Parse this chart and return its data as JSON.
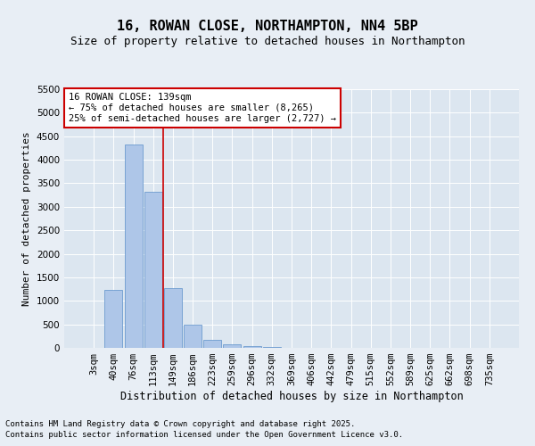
{
  "title": "16, ROWAN CLOSE, NORTHAMPTON, NN4 5BP",
  "subtitle": "Size of property relative to detached houses in Northampton",
  "xlabel": "Distribution of detached houses by size in Northampton",
  "ylabel": "Number of detached properties",
  "categories": [
    "3sqm",
    "40sqm",
    "76sqm",
    "113sqm",
    "149sqm",
    "186sqm",
    "223sqm",
    "259sqm",
    "296sqm",
    "332sqm",
    "369sqm",
    "406sqm",
    "442sqm",
    "479sqm",
    "515sqm",
    "552sqm",
    "589sqm",
    "625sqm",
    "662sqm",
    "698sqm",
    "735sqm"
  ],
  "bar_values": [
    0,
    1230,
    4320,
    3320,
    1270,
    490,
    175,
    75,
    30,
    10,
    5,
    0,
    0,
    0,
    0,
    0,
    0,
    0,
    0,
    0,
    0
  ],
  "bar_color": "#aec6e8",
  "bar_edge_color": "#5b8fc9",
  "ylim": [
    0,
    5500
  ],
  "yticks": [
    0,
    500,
    1000,
    1500,
    2000,
    2500,
    3000,
    3500,
    4000,
    4500,
    5000,
    5500
  ],
  "property_bar_index": 3,
  "red_line_x": 3.5,
  "red_line_color": "#cc0000",
  "annotation_text": "16 ROWAN CLOSE: 139sqm\n← 75% of detached houses are smaller (8,265)\n25% of semi-detached houses are larger (2,727) →",
  "annotation_box_color": "#ffffff",
  "annotation_box_edge_color": "#cc0000",
  "footnote_line1": "Contains HM Land Registry data © Crown copyright and database right 2025.",
  "footnote_line2": "Contains public sector information licensed under the Open Government Licence v3.0.",
  "background_color": "#e8eef5",
  "plot_bg_color": "#dce6f0",
  "grid_color": "#ffffff",
  "title_fontsize": 11,
  "subtitle_fontsize": 9,
  "xlabel_fontsize": 8.5,
  "ylabel_fontsize": 8,
  "tick_fontsize": 7.5,
  "annotation_fontsize": 7.5,
  "footnote_fontsize": 6.5
}
